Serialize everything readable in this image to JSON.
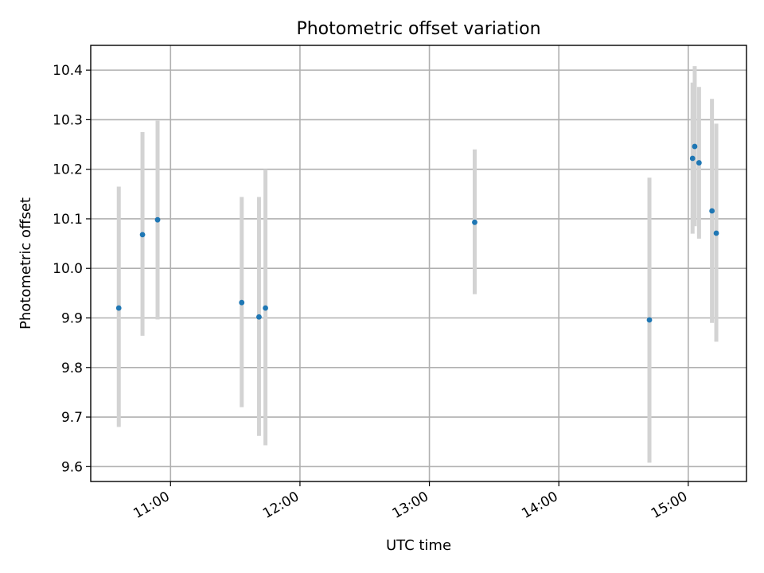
{
  "chart_data": {
    "type": "scatter",
    "title": "Photometric offset variation",
    "xlabel": "UTC time",
    "ylabel": "Photometric offset",
    "x_unit": "UTC time (HH:MM)",
    "xlim": [
      "10:23",
      "15:27"
    ],
    "ylim": [
      9.57,
      10.45
    ],
    "x_ticks": [
      "11:00",
      "12:00",
      "13:00",
      "14:00",
      "15:00"
    ],
    "y_ticks": [
      9.6,
      9.7,
      9.8,
      9.9,
      10.0,
      10.1,
      10.2,
      10.3,
      10.4
    ],
    "grid": true,
    "colors": {
      "point": "#1f77b4",
      "error_bar": "#d3d3d3",
      "grid": "#b0b0b0"
    },
    "series": [
      {
        "points": [
          {
            "x": "10:36",
            "y": 9.92,
            "yerr_low": 9.68,
            "yerr_high": 10.165
          },
          {
            "x": "10:47",
            "y": 10.068,
            "yerr_low": 9.864,
            "yerr_high": 10.275
          },
          {
            "x": "10:54",
            "y": 10.098,
            "yerr_low": 9.897,
            "yerr_high": 10.298
          },
          {
            "x": "11:33",
            "y": 9.931,
            "yerr_low": 9.72,
            "yerr_high": 10.144
          },
          {
            "x": "11:41",
            "y": 9.902,
            "yerr_low": 9.662,
            "yerr_high": 10.144
          },
          {
            "x": "11:44",
            "y": 9.92,
            "yerr_low": 9.643,
            "yerr_high": 10.2
          },
          {
            "x": "13:21",
            "y": 10.093,
            "yerr_low": 9.948,
            "yerr_high": 10.24
          },
          {
            "x": "14:42",
            "y": 9.896,
            "yerr_low": 9.608,
            "yerr_high": 10.183
          },
          {
            "x": "15:02",
            "y": 10.222,
            "yerr_low": 10.07,
            "yerr_high": 10.375
          },
          {
            "x": "15:03",
            "y": 10.246,
            "yerr_low": 10.085,
            "yerr_high": 10.408
          },
          {
            "x": "15:05",
            "y": 10.213,
            "yerr_low": 10.06,
            "yerr_high": 10.366
          },
          {
            "x": "15:11",
            "y": 10.116,
            "yerr_low": 9.89,
            "yerr_high": 10.342
          },
          {
            "x": "15:13",
            "y": 10.071,
            "yerr_low": 9.852,
            "yerr_high": 10.292
          }
        ]
      }
    ]
  }
}
